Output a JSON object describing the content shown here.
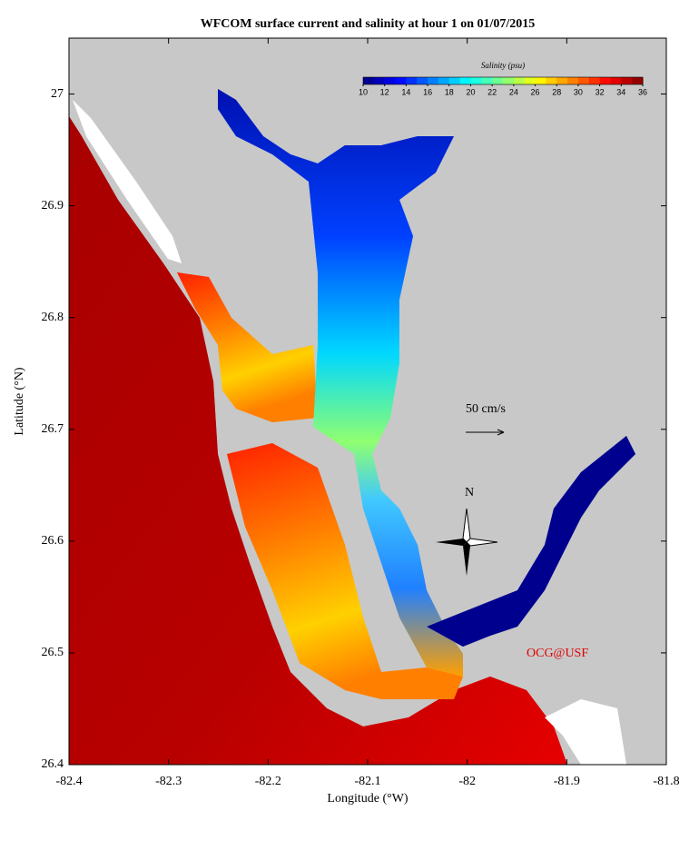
{
  "chart_data": {
    "type": "map",
    "title": "WFCOM surface current and salinity at hour 1 on 01/07/2015",
    "x_label": "Longitude (°W)",
    "y_label": "Latitude (°N)",
    "xlim": [
      -82.4,
      -81.8
    ],
    "xticks": [
      -82.4,
      -82.3,
      -82.2,
      -82.1,
      -82,
      -81.9,
      -81.8
    ],
    "ylim": [
      26.4,
      27.05
    ],
    "yticks": [
      26.4,
      26.5,
      26.6,
      26.7,
      26.8,
      26.9,
      27
    ],
    "colorbar": {
      "title": "Salinity (psu)",
      "colormap": "jet",
      "lim": [
        10,
        36
      ],
      "ticks": [
        10,
        12,
        14,
        16,
        18,
        20,
        22,
        24,
        26,
        28,
        30,
        32,
        34,
        36
      ]
    },
    "scale_label": "50 cm/s",
    "north_label": "N",
    "credit": "OCG@USF"
  }
}
